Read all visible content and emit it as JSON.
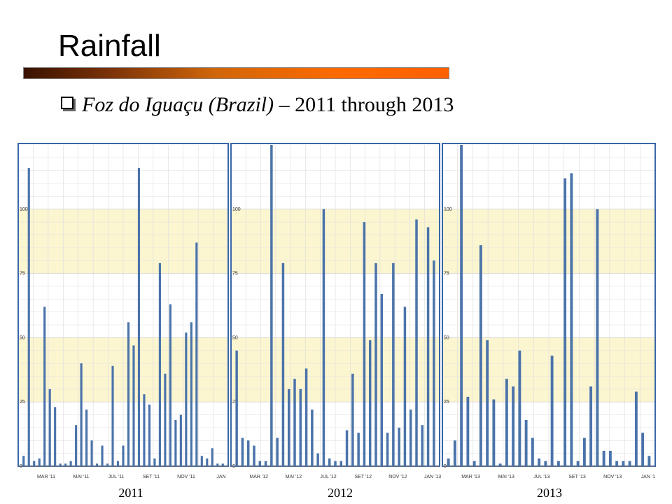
{
  "slide": {
    "title": "Rainfall",
    "bullet_italic": "Foz do Iguaçu (Brazil)",
    "bullet_rest": " – 2011 through 2013"
  },
  "colors": {
    "bar": "#4a73aa",
    "band": "#fbf5d0",
    "frame": "#3a66a8"
  },
  "chart_data": [
    {
      "type": "bar",
      "year_label": "2011",
      "x_ticks": [
        "MAR '11",
        "MAI '11",
        "JUL '11",
        "SET '11",
        "NOV '11",
        "JAN"
      ],
      "y_ticks": [
        "100",
        "75",
        "50",
        "25",
        "0"
      ],
      "ylim": [
        0,
        125
      ],
      "values": [
        4,
        116,
        2,
        3,
        62,
        30,
        23,
        1,
        1,
        2,
        16,
        40,
        22,
        10,
        1,
        8,
        1,
        39,
        2,
        8,
        56,
        47,
        116,
        28,
        24,
        3,
        79,
        36,
        63,
        18,
        20,
        52,
        56,
        87,
        4,
        3,
        7,
        1,
        1
      ]
    },
    {
      "type": "bar",
      "year_label": "2012",
      "x_ticks": [
        "MAR '12",
        "MAI '12",
        "JUL '12",
        "SET '12",
        "NOV '12",
        "JAN '13"
      ],
      "y_ticks": [
        "100",
        "75",
        "50",
        "25",
        "0"
      ],
      "ylim": [
        0,
        125
      ],
      "values": [
        45,
        11,
        10,
        8,
        2,
        2,
        125,
        11,
        79,
        30,
        34,
        30,
        38,
        22,
        5,
        100,
        3,
        2,
        2,
        14,
        36,
        13,
        95,
        49,
        79,
        67,
        13,
        79,
        15,
        62,
        22,
        96,
        16,
        93,
        80
      ]
    },
    {
      "type": "bar",
      "year_label": "2013",
      "x_ticks": [
        "MAR '13",
        "MAI '13",
        "JUL '13",
        "SET '13",
        "NOV '13",
        "JAN '1"
      ],
      "y_ticks": [
        "100",
        "75",
        "50",
        "25",
        "0"
      ],
      "ylim": [
        0,
        125
      ],
      "values": [
        3,
        10,
        125,
        27,
        2,
        86,
        49,
        26,
        1,
        34,
        31,
        45,
        18,
        11,
        3,
        2,
        43,
        2,
        112,
        114,
        2,
        11,
        31,
        100,
        6,
        6,
        2,
        2,
        2,
        29,
        13,
        4
      ]
    }
  ]
}
